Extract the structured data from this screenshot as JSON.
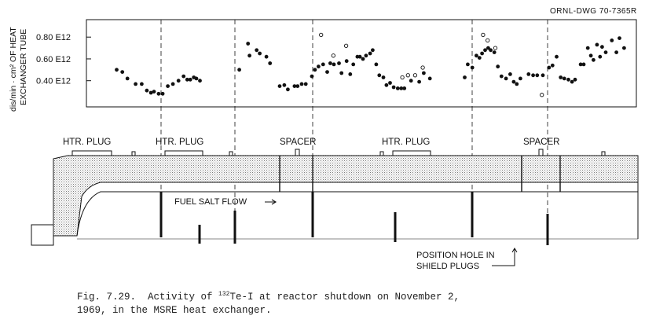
{
  "drawing_number": "ORNL-DWG 70-7365R",
  "chart_data": {
    "type": "scatter",
    "ylabel_line1": "dis/min · cm² OF HEAT",
    "ylabel_line2": "EXCHANGER TUBE",
    "ytick_labels": [
      "0.80 E12",
      "0.60 E12",
      "0.40 E12"
    ],
    "yticks": [
      0.8,
      0.6,
      0.4
    ],
    "ylim": [
      0.16,
      0.96
    ],
    "xlim": [
      0,
      100
    ],
    "series": [
      {
        "marker": "filled",
        "points": [
          [
            5.0,
            0.5
          ],
          [
            6.1,
            0.48
          ],
          [
            7.1,
            0.42
          ],
          [
            8.7,
            0.37
          ],
          [
            9.9,
            0.37
          ],
          [
            10.9,
            0.31
          ],
          [
            11.7,
            0.29
          ],
          [
            12.3,
            0.3
          ],
          [
            13.2,
            0.28
          ],
          [
            14.0,
            0.28
          ],
          [
            15.0,
            0.35
          ],
          [
            16.0,
            0.37
          ],
          [
            17.1,
            0.4
          ],
          [
            18.1,
            0.44
          ],
          [
            18.8,
            0.41
          ],
          [
            19.4,
            0.41
          ],
          [
            20.1,
            0.43
          ],
          [
            20.6,
            0.42
          ],
          [
            21.3,
            0.4
          ],
          [
            29.0,
            0.5
          ],
          [
            30.7,
            0.74
          ],
          [
            31.0,
            0.63
          ],
          [
            32.4,
            0.68
          ],
          [
            33.0,
            0.65
          ],
          [
            34.3,
            0.62
          ],
          [
            35.0,
            0.56
          ],
          [
            36.9,
            0.35
          ],
          [
            37.8,
            0.36
          ],
          [
            38.5,
            0.32
          ],
          [
            39.8,
            0.35
          ],
          [
            40.4,
            0.35
          ],
          [
            41.2,
            0.37
          ],
          [
            42.0,
            0.37
          ],
          [
            43.2,
            0.44
          ],
          [
            43.8,
            0.5
          ],
          [
            44.5,
            0.53
          ],
          [
            45.4,
            0.55
          ],
          [
            46.2,
            0.48
          ],
          [
            46.8,
            0.56
          ],
          [
            47.5,
            0.55
          ],
          [
            48.5,
            0.56
          ],
          [
            49.0,
            0.47
          ],
          [
            50.0,
            0.58
          ],
          [
            50.7,
            0.46
          ],
          [
            51.3,
            0.55
          ],
          [
            52.1,
            0.62
          ],
          [
            52.6,
            0.62
          ],
          [
            53.2,
            0.6
          ],
          [
            53.8,
            0.63
          ],
          [
            54.6,
            0.65
          ],
          [
            55.1,
            0.68
          ],
          [
            55.8,
            0.55
          ],
          [
            56.4,
            0.45
          ],
          [
            57.2,
            0.43
          ],
          [
            57.8,
            0.36
          ],
          [
            58.5,
            0.38
          ],
          [
            59.2,
            0.34
          ],
          [
            60.0,
            0.33
          ],
          [
            60.7,
            0.33
          ],
          [
            61.3,
            0.33
          ],
          [
            62.6,
            0.4
          ],
          [
            64.2,
            0.39
          ],
          [
            65.1,
            0.47
          ],
          [
            66.3,
            0.42
          ],
          [
            73.1,
            0.43
          ],
          [
            73.7,
            0.55
          ],
          [
            74.6,
            0.52
          ],
          [
            75.4,
            0.63
          ],
          [
            76.0,
            0.61
          ],
          [
            76.5,
            0.65
          ],
          [
            77.1,
            0.68
          ],
          [
            77.7,
            0.7
          ],
          [
            78.2,
            0.68
          ],
          [
            78.9,
            0.66
          ],
          [
            79.6,
            0.53
          ],
          [
            80.3,
            0.44
          ],
          [
            81.2,
            0.42
          ],
          [
            82.0,
            0.46
          ],
          [
            82.7,
            0.39
          ],
          [
            83.3,
            0.37
          ],
          [
            84.0,
            0.42
          ],
          [
            85.6,
            0.46
          ],
          [
            86.5,
            0.45
          ],
          [
            87.3,
            0.45
          ],
          [
            88.4,
            0.45
          ],
          [
            89.6,
            0.52
          ],
          [
            90.3,
            0.54
          ],
          [
            91.1,
            0.62
          ],
          [
            91.9,
            0.43
          ],
          [
            92.6,
            0.42
          ],
          [
            93.4,
            0.41
          ],
          [
            94.1,
            0.39
          ],
          [
            94.7,
            0.41
          ],
          [
            95.8,
            0.55
          ],
          [
            96.4,
            0.55
          ],
          [
            97.2,
            0.7
          ],
          [
            97.8,
            0.63
          ],
          [
            98.3,
            0.59
          ],
          [
            99.0,
            0.73
          ],
          [
            99.6,
            0.62
          ],
          [
            100.0,
            0.71
          ],
          [
            100.7,
            0.66
          ],
          [
            101.9,
            0.77
          ],
          [
            102.8,
            0.66
          ],
          [
            103.4,
            0.79
          ],
          [
            104.3,
            0.7
          ]
        ]
      },
      {
        "marker": "open",
        "points": [
          [
            45.0,
            0.82
          ],
          [
            47.4,
            0.63
          ],
          [
            49.9,
            0.72
          ],
          [
            60.9,
            0.43
          ],
          [
            62.0,
            0.45
          ],
          [
            63.4,
            0.45
          ],
          [
            64.9,
            0.52
          ],
          [
            76.7,
            0.82
          ],
          [
            77.6,
            0.77
          ],
          [
            79.1,
            0.7
          ],
          [
            88.2,
            0.27
          ]
        ]
      }
    ]
  },
  "diagram": {
    "labels": {
      "htr_plug_1": "HTR. PLUG",
      "htr_plug_2": "HTR. PLUG",
      "spacer_1": "SPACER",
      "htr_plug_3": "HTR. PLUG",
      "spacer_2": "SPACER",
      "fuel_salt_flow": "FUEL SALT FLOW",
      "position_hole_line1": "POSITION HOLE IN",
      "position_hole_line2": "SHIELD PLUGS"
    },
    "colors": {
      "ink": "#111111",
      "stipple": "#9a9a9a"
    }
  },
  "caption": {
    "line1_prefix": "Fig. 7.29.  Activity of ",
    "superscript": "132",
    "line1_suffix": "Te-I at reactor shutdown on November 2,",
    "line2": "1969, in the MSRE heat exchanger."
  }
}
